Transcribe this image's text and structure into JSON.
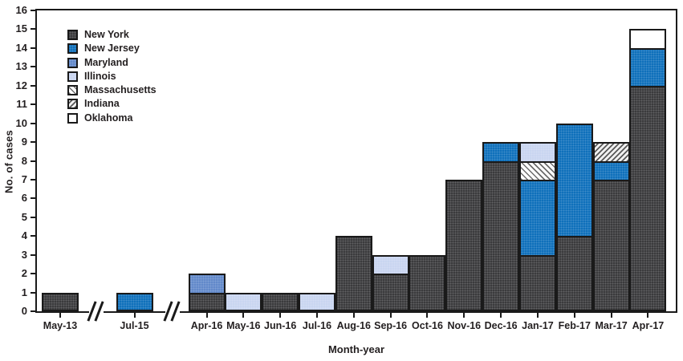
{
  "figure": {
    "kind": "stacked epidemic curve bar chart"
  },
  "chart_data": {
    "type": "bar",
    "stacked": true,
    "title": "",
    "xlabel": "Month-year",
    "ylabel": "No. of cases",
    "ylim": [
      0,
      16
    ],
    "ytick_step": 1,
    "grid": false,
    "legend_position": "upper-left-inside",
    "axis_break_after": [
      "May-13",
      "Jul-15"
    ],
    "categories": [
      "May-13",
      "Jul-15",
      "Apr-16",
      "May-16",
      "Jun-16",
      "Jul-16",
      "Aug-16",
      "Sep-16",
      "Oct-16",
      "Nov-16",
      "Dec-16",
      "Jan-17",
      "Feb-17",
      "Mar-17",
      "Apr-17"
    ],
    "series": [
      {
        "name": "New York",
        "values": [
          1,
          0,
          1,
          0,
          1,
          0,
          4,
          2,
          3,
          7,
          8,
          3,
          4,
          7,
          12
        ]
      },
      {
        "name": "New Jersey",
        "values": [
          0,
          1,
          0,
          0,
          0,
          0,
          0,
          0,
          0,
          0,
          1,
          4,
          6,
          1,
          2
        ]
      },
      {
        "name": "Maryland",
        "values": [
          0,
          0,
          1,
          0,
          0,
          0,
          0,
          0,
          0,
          0,
          0,
          0,
          0,
          0,
          0
        ]
      },
      {
        "name": "Illinois",
        "values": [
          0,
          0,
          0,
          1,
          0,
          1,
          0,
          1,
          0,
          0,
          0,
          1,
          0,
          0,
          0
        ]
      },
      {
        "name": "Massachusetts",
        "values": [
          0,
          0,
          0,
          0,
          0,
          0,
          0,
          0,
          0,
          0,
          0,
          1,
          0,
          0,
          0
        ]
      },
      {
        "name": "Indiana",
        "values": [
          0,
          0,
          0,
          0,
          0,
          0,
          0,
          0,
          0,
          0,
          0,
          0,
          0,
          1,
          0
        ]
      },
      {
        "name": "Oklahoma",
        "values": [
          0,
          0,
          0,
          0,
          0,
          0,
          0,
          0,
          0,
          0,
          0,
          0,
          0,
          0,
          1
        ]
      }
    ],
    "bars": [
      {
        "label": "May-13",
        "segments": [
          {
            "state": "New York",
            "value": 1
          }
        ]
      },
      {
        "label": "Jul-15",
        "segments": [
          {
            "state": "New Jersey",
            "value": 1
          }
        ]
      },
      {
        "label": "Apr-16",
        "segments": [
          {
            "state": "New York",
            "value": 1
          },
          {
            "state": "Maryland",
            "value": 1
          }
        ]
      },
      {
        "label": "May-16",
        "segments": [
          {
            "state": "Illinois",
            "value": 1
          }
        ]
      },
      {
        "label": "Jun-16",
        "segments": [
          {
            "state": "New York",
            "value": 1
          }
        ]
      },
      {
        "label": "Jul-16",
        "segments": [
          {
            "state": "Illinois",
            "value": 1
          }
        ]
      },
      {
        "label": "Aug-16",
        "segments": [
          {
            "state": "New York",
            "value": 4
          }
        ]
      },
      {
        "label": "Sep-16",
        "segments": [
          {
            "state": "New York",
            "value": 2
          },
          {
            "state": "Illinois",
            "value": 1
          }
        ]
      },
      {
        "label": "Oct-16",
        "segments": [
          {
            "state": "New York",
            "value": 3
          }
        ]
      },
      {
        "label": "Nov-16",
        "segments": [
          {
            "state": "New York",
            "value": 7
          }
        ]
      },
      {
        "label": "Dec-16",
        "segments": [
          {
            "state": "New York",
            "value": 8
          },
          {
            "state": "New Jersey",
            "value": 1
          }
        ]
      },
      {
        "label": "Jan-17",
        "segments": [
          {
            "state": "New York",
            "value": 3
          },
          {
            "state": "New Jersey",
            "value": 4
          },
          {
            "state": "Massachusetts",
            "value": 1
          },
          {
            "state": "Illinois",
            "value": 1
          }
        ]
      },
      {
        "label": "Feb-17",
        "segments": [
          {
            "state": "New York",
            "value": 4
          },
          {
            "state": "New Jersey",
            "value": 6
          }
        ]
      },
      {
        "label": "Mar-17",
        "segments": [
          {
            "state": "New York",
            "value": 7
          },
          {
            "state": "New Jersey",
            "value": 1
          },
          {
            "state": "Indiana",
            "value": 1
          }
        ]
      },
      {
        "label": "Apr-17",
        "segments": [
          {
            "state": "New York",
            "value": 12
          },
          {
            "state": "New Jersey",
            "value": 2
          },
          {
            "state": "Oklahoma",
            "value": 1
          }
        ]
      }
    ],
    "states": {
      "New York": {
        "color": "#3b3b3d",
        "pattern": "dots"
      },
      "New Jersey": {
        "color": "#0f70bb",
        "pattern": "dots"
      },
      "Maryland": {
        "color": "#6289ca",
        "pattern": "dots"
      },
      "Illinois": {
        "color": "#c9d5f0",
        "pattern": "dots"
      },
      "Massachusetts": {
        "color": "#ffffff",
        "pattern": "hatch-fwd"
      },
      "Indiana": {
        "color": "#ffffff",
        "pattern": "hatch-back"
      },
      "Oklahoma": {
        "color": "#ffffff",
        "pattern": "solid"
      }
    },
    "legend_order": [
      "New York",
      "New Jersey",
      "Maryland",
      "Illinois",
      "Massachusetts",
      "Indiana",
      "Oklahoma"
    ],
    "colors": {
      "axis": "#1a1a1a",
      "text": "#231f20",
      "background": "#ffffff"
    }
  }
}
